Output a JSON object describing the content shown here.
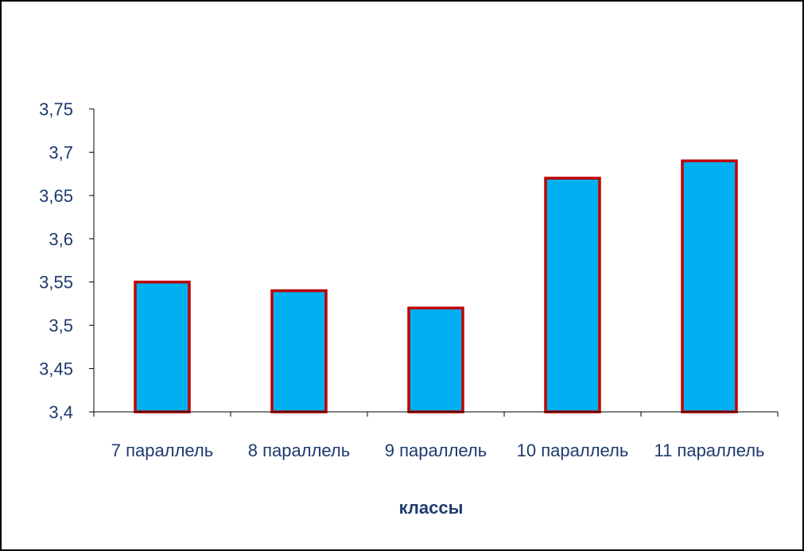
{
  "chart_data": {
    "type": "bar",
    "title": "",
    "xlabel": "классы",
    "ylabel": "",
    "categories": [
      "7 параллель",
      "8 параллель",
      "9 параллель",
      "10 параллель",
      "11 параллель"
    ],
    "values": [
      3.55,
      3.54,
      3.52,
      3.67,
      3.69
    ],
    "ylim": [
      3.4,
      3.75
    ],
    "yticks": [
      "3,4",
      "3,45",
      "3,5",
      "3,55",
      "3,6",
      "3,65",
      "3,7",
      "3,75"
    ],
    "grid": false,
    "legend": "none"
  },
  "colors": {
    "bar_fill": "#00B0F0",
    "bar_border": "#C00000",
    "text": "#1F3A6E",
    "axis": "#000000"
  }
}
